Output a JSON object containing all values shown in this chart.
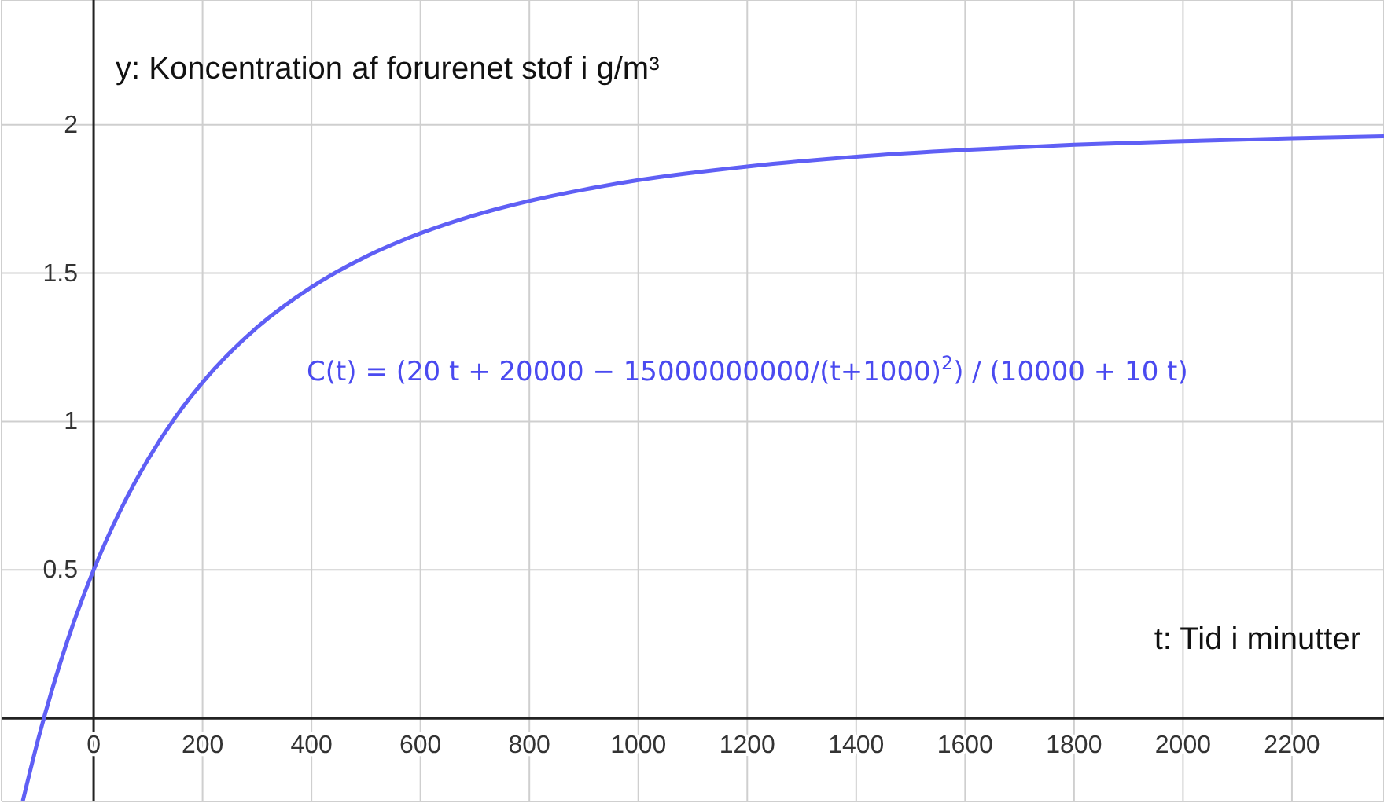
{
  "chart_data": {
    "type": "line",
    "xlabel": "t: Tid i minutter",
    "ylabel": "y: Koncentration af forurenet stof i g/m³",
    "annotations": [
      "C(t) = (20 t + 20000 − 15000000000/(t+1000)$^{2}$) / (10000 + 10 t)"
    ],
    "x": [
      -130,
      -100,
      -50,
      0,
      50,
      100,
      150,
      200,
      300,
      400,
      500,
      600,
      700,
      800,
      900,
      1000,
      1200,
      1400,
      1600,
      1800,
      2000,
      2200,
      2369
    ],
    "series": [
      {
        "color": "#5f5ff5",
        "values": [
          -0.278,
          -0.058,
          0.251,
          0.5,
          0.704,
          0.873,
          1.014,
          1.132,
          1.317,
          1.453,
          1.556,
          1.634,
          1.695,
          1.743,
          1.781,
          1.813,
          1.859,
          1.892,
          1.915,
          1.932,
          1.944,
          1.954,
          1.961
        ]
      }
    ],
    "xlim": [
      -169,
      2369
    ],
    "ylim": [
      -0.28,
      2.42
    ],
    "xticks": [
      0,
      200,
      400,
      600,
      800,
      1000,
      1200,
      1400,
      1600,
      1800,
      2000,
      2200
    ],
    "yticks": [
      0.5,
      1,
      1.5,
      2
    ],
    "grid": true,
    "marker": "none",
    "line_style": "solid"
  }
}
